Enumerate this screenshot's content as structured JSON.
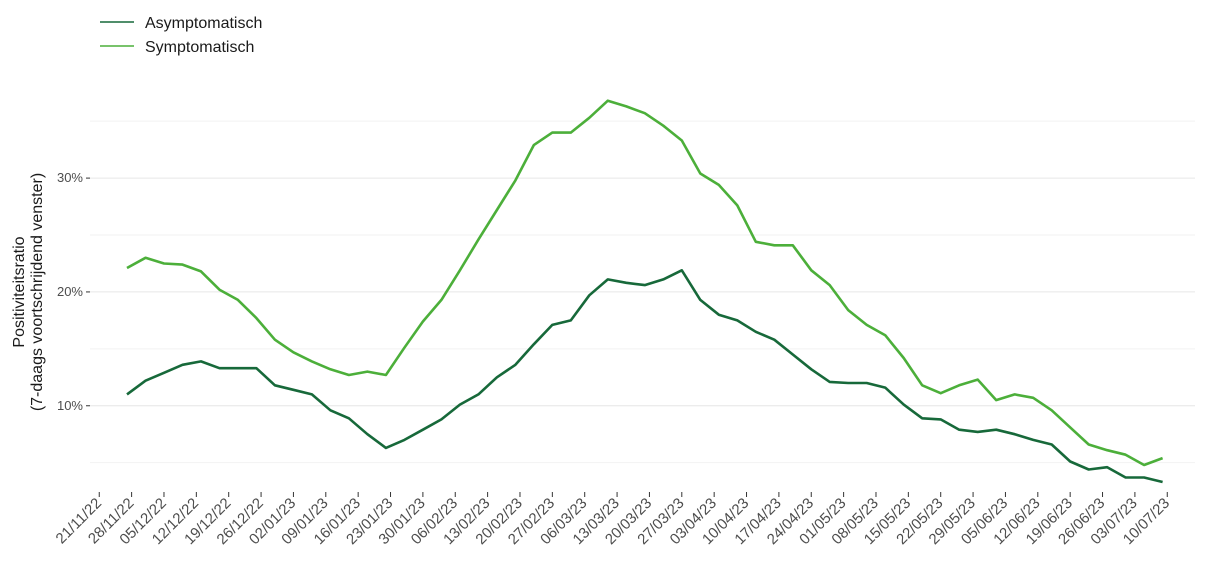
{
  "chart_data": {
    "type": "line",
    "y_label": [
      "Positiviteitsratio",
      "(7-daags voortschrijdend venster)"
    ],
    "x": [
      "27/11/22",
      "01/12/22",
      "05/12/22",
      "09/12/22",
      "13/12/22",
      "17/12/22",
      "21/12/22",
      "25/12/22",
      "29/12/22",
      "02/01/23",
      "06/01/23",
      "10/01/23",
      "14/01/23",
      "18/01/23",
      "22/01/23",
      "26/01/23",
      "30/01/23",
      "03/02/23",
      "07/02/23",
      "11/02/23",
      "15/02/23",
      "19/02/23",
      "23/02/23",
      "27/02/23",
      "03/03/23",
      "07/03/23",
      "11/03/23",
      "15/03/23",
      "19/03/23",
      "23/03/23",
      "27/03/23",
      "31/03/23",
      "04/04/23",
      "08/04/23",
      "12/04/23",
      "16/04/23",
      "20/04/23",
      "24/04/23",
      "28/04/23",
      "02/05/23",
      "06/05/23",
      "10/05/23",
      "14/05/23",
      "18/05/23",
      "22/05/23",
      "26/05/23",
      "30/05/23",
      "03/06/23",
      "07/06/23",
      "11/06/23",
      "15/06/23",
      "19/06/23",
      "23/06/23",
      "27/06/23",
      "01/07/23",
      "05/07/23",
      "09/07/23"
    ],
    "series": [
      {
        "name": "Asymptomatisch",
        "color": "#17693a",
        "values": [
          11.0,
          12.2,
          12.9,
          13.6,
          13.9,
          13.3,
          13.3,
          13.3,
          11.8,
          11.4,
          11.0,
          9.6,
          8.9,
          7.5,
          6.3,
          7.0,
          7.9,
          8.8,
          10.1,
          11.0,
          12.5,
          13.6,
          15.4,
          17.1,
          17.5,
          19.7,
          21.1,
          20.8,
          20.6,
          21.1,
          21.9,
          19.3,
          18.0,
          17.5,
          16.5,
          15.8,
          14.5,
          13.2,
          12.1,
          12.0,
          12.0,
          11.6,
          10.1,
          8.9,
          8.8,
          7.9,
          7.7,
          7.9,
          7.5,
          7.0,
          6.6,
          5.1,
          4.4,
          4.6,
          3.7,
          3.7,
          3.3
        ]
      },
      {
        "name": "Symptomatisch",
        "color": "#4caf3a",
        "values": [
          22.1,
          23.0,
          22.5,
          22.4,
          21.8,
          20.2,
          19.3,
          17.7,
          15.8,
          14.7,
          13.9,
          13.2,
          12.7,
          13.0,
          12.7,
          15.1,
          17.4,
          19.3,
          21.9,
          24.6,
          27.2,
          29.8,
          32.9,
          34.0,
          34.0,
          35.3,
          36.8,
          36.3,
          35.7,
          34.6,
          33.3,
          30.4,
          29.4,
          27.6,
          24.4,
          24.1,
          24.1,
          21.9,
          20.6,
          18.4,
          17.1,
          16.2,
          14.2,
          11.8,
          11.1,
          11.8,
          12.3,
          10.5,
          11.0,
          10.7,
          9.6,
          8.1,
          6.6,
          6.1,
          5.7,
          4.8,
          5.4
        ]
      }
    ],
    "xlim": [
      "19/11/22",
      "16/07/23"
    ],
    "xticks": [
      "21/11/22",
      "28/11/22",
      "05/12/22",
      "12/12/22",
      "19/12/22",
      "26/12/22",
      "02/01/23",
      "09/01/23",
      "16/01/23",
      "23/01/23",
      "30/01/23",
      "06/02/23",
      "13/02/23",
      "20/02/23",
      "27/02/23",
      "06/03/23",
      "13/03/23",
      "20/03/23",
      "27/03/23",
      "03/04/23",
      "10/04/23",
      "17/04/23",
      "24/04/23",
      "01/05/23",
      "08/05/23",
      "15/05/23",
      "22/05/23",
      "29/05/23",
      "05/06/23",
      "12/06/23",
      "19/06/23",
      "26/06/23",
      "03/07/23",
      "10/07/23"
    ],
    "ylim": [
      2.6,
      37.3
    ],
    "yticks": [
      {
        "value": 10,
        "label": "10%"
      },
      {
        "value": 20,
        "label": "20%"
      },
      {
        "value": 30,
        "label": "30%"
      }
    ],
    "minor_yticks": [
      5,
      15,
      25,
      35
    ],
    "grid": true,
    "legend": "top-left"
  }
}
